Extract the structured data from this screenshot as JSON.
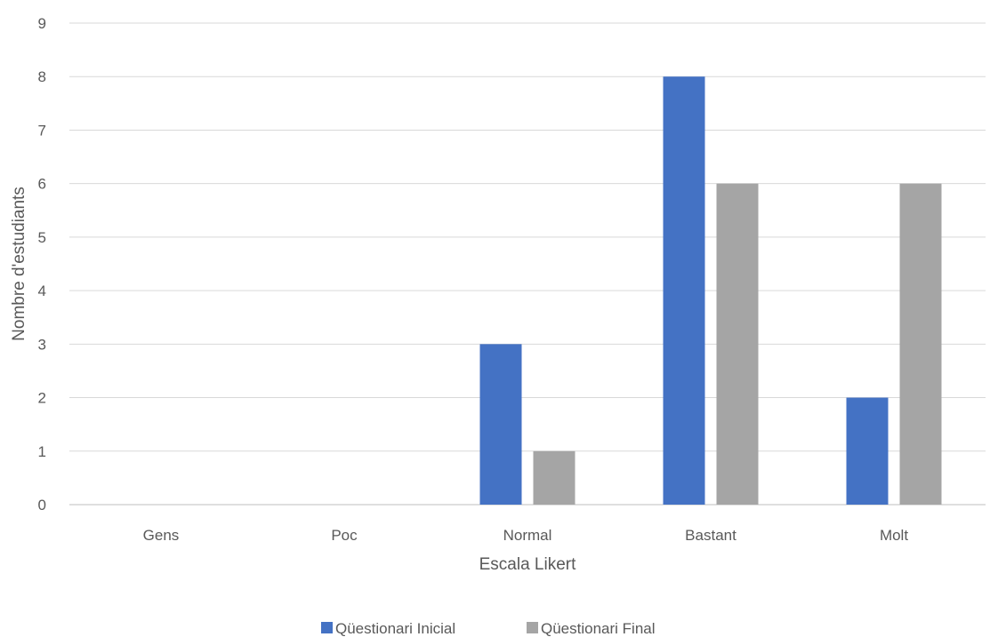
{
  "chart_data": {
    "type": "bar",
    "title": "",
    "xlabel": "Escala Likert",
    "ylabel": "Nombre d'estudiants",
    "categories": [
      "Gens",
      "Poc",
      "Normal",
      "Bastant",
      "Molt"
    ],
    "ylim": [
      0,
      9
    ],
    "yticks": [
      "0",
      "1",
      "2",
      "3",
      "4",
      "5",
      "6",
      "7",
      "8",
      "9"
    ],
    "grid": true,
    "legend_position": "bottom",
    "series": [
      {
        "name": "Qüestionari Inicial",
        "values": [
          0,
          0,
          3,
          8,
          2
        ],
        "color": "#4472C4"
      },
      {
        "name": "Qüestionari Final",
        "values": [
          0,
          0,
          1,
          6,
          6
        ],
        "color": "#A5A5A5"
      }
    ]
  }
}
